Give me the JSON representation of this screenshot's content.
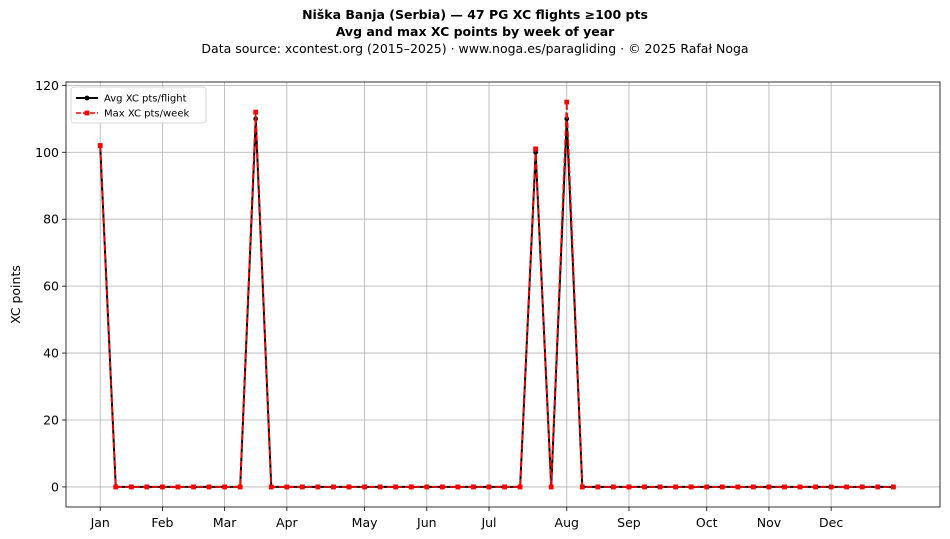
{
  "header": {
    "title": "Niška Banja (Serbia)  —  47 PG XC flights ≥100 pts",
    "subtitle": "Avg and max XC points by week of year",
    "source": "Data source: xcontest.org (2015–2025)  ·  www.noga.es/paragliding  ·  © 2025 Rafał Noga"
  },
  "chart_data": {
    "type": "line",
    "title": "Niška Banja (Serbia)  —  47 PG XC flights ≥100 pts",
    "subtitle": "Avg and max XC points by week of year",
    "xlabel": "",
    "ylabel": "XC points",
    "x_ticks": [
      "Jan",
      "Feb",
      "Mar",
      "Apr",
      "May",
      "Jun",
      "Jul",
      "Aug",
      "Sep",
      "Oct",
      "Nov",
      "Dec"
    ],
    "x_tick_weeks": [
      1,
      5,
      9,
      13,
      18,
      22,
      26,
      31,
      35,
      40,
      44,
      48
    ],
    "xlim": [
      -1.2,
      55
    ],
    "ylim": [
      -6,
      121
    ],
    "y_ticks": [
      0,
      20,
      40,
      60,
      80,
      100,
      120
    ],
    "grid": true,
    "legend_position": "top-left",
    "x": [
      1,
      2,
      3,
      4,
      5,
      6,
      7,
      8,
      9,
      10,
      11,
      12,
      13,
      14,
      15,
      16,
      17,
      18,
      19,
      20,
      21,
      22,
      23,
      24,
      25,
      26,
      27,
      28,
      29,
      30,
      31,
      32,
      33,
      34,
      35,
      36,
      37,
      38,
      39,
      40,
      41,
      42,
      43,
      44,
      45,
      46,
      47,
      48,
      49,
      50,
      51,
      52
    ],
    "series": [
      {
        "name": "Avg XC pts/flight",
        "color": "#000000",
        "marker": "circle",
        "values": [
          102,
          0,
          0,
          0,
          0,
          0,
          0,
          0,
          0,
          0,
          110,
          0,
          0,
          0,
          0,
          0,
          0,
          0,
          0,
          0,
          0,
          0,
          0,
          0,
          0,
          0,
          0,
          0,
          100,
          0,
          110,
          0,
          0,
          0,
          0,
          0,
          0,
          0,
          0,
          0,
          0,
          0,
          0,
          0,
          0,
          0,
          0,
          0,
          0,
          0,
          0,
          0
        ]
      },
      {
        "name": "Max XC pts/week",
        "color": "#ff0000",
        "marker": "square",
        "linestyle": "dashed",
        "values": [
          102,
          0,
          0,
          0,
          0,
          0,
          0,
          0,
          0,
          0,
          112,
          0,
          0,
          0,
          0,
          0,
          0,
          0,
          0,
          0,
          0,
          0,
          0,
          0,
          0,
          0,
          0,
          0,
          101,
          0,
          115,
          0,
          0,
          0,
          0,
          0,
          0,
          0,
          0,
          0,
          0,
          0,
          0,
          0,
          0,
          0,
          0,
          0,
          0,
          0,
          0,
          0
        ]
      }
    ]
  }
}
